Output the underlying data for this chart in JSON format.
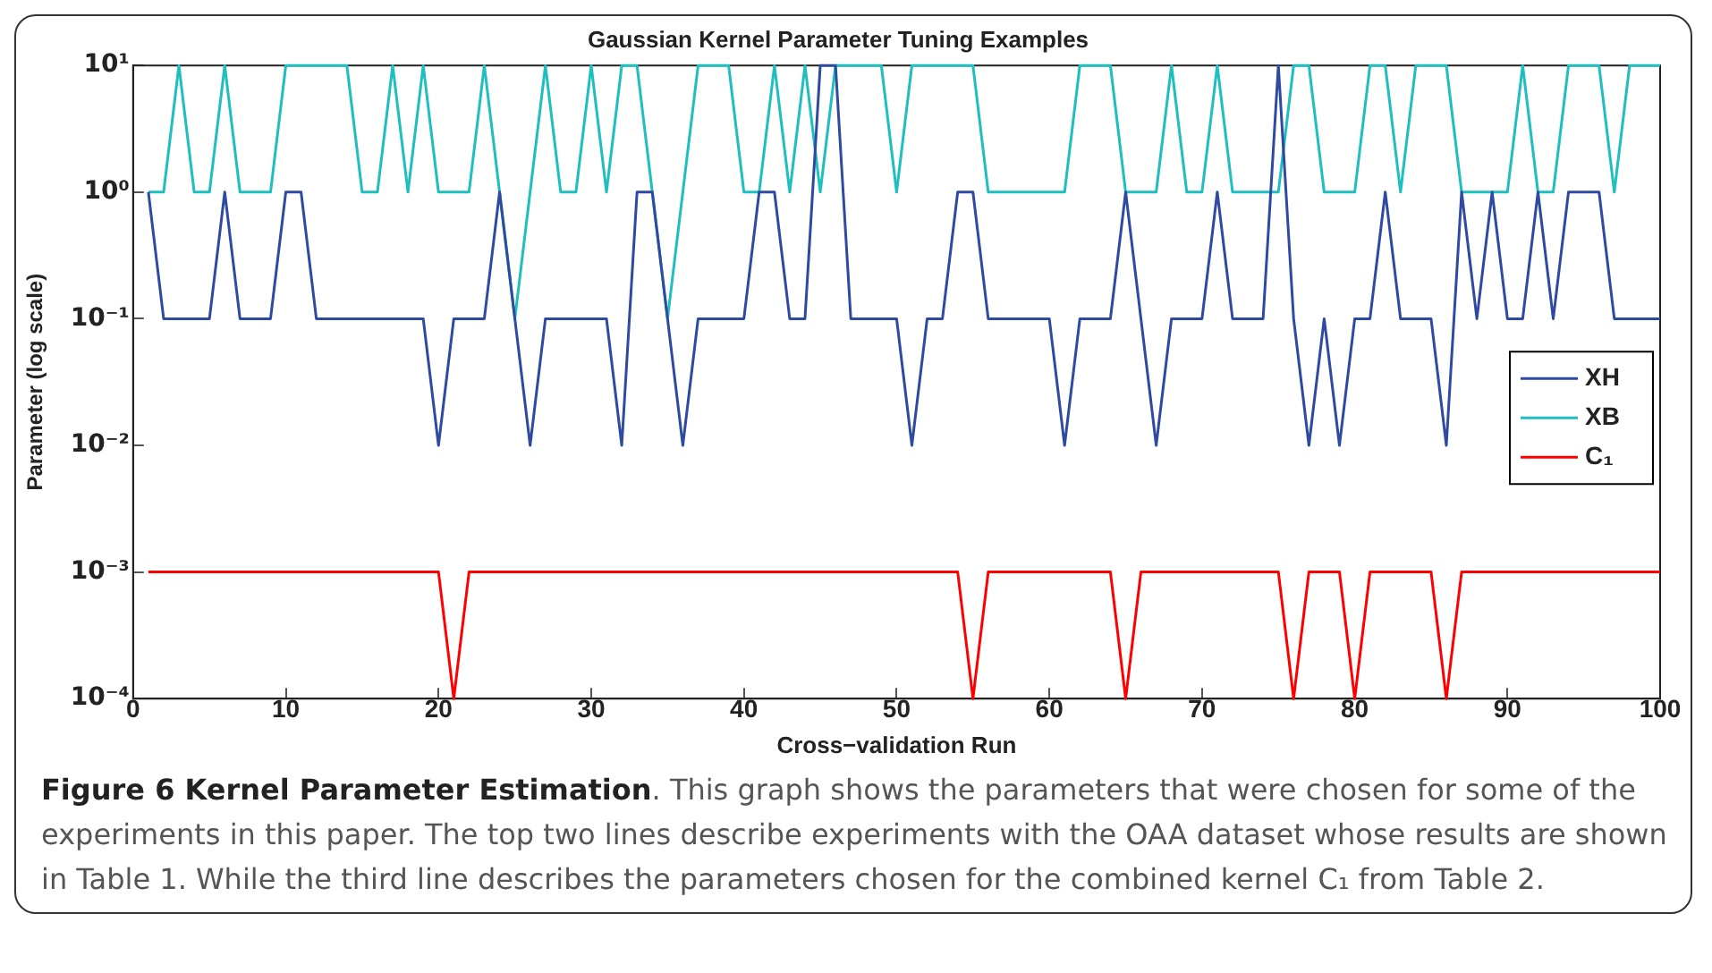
{
  "chart_data": {
    "type": "line",
    "title": "Gaussian Kernel Parameter Tuning Examples",
    "xlabel": "Cross−validation Run",
    "ylabel": "Parameter (log scale)",
    "x": [
      1,
      2,
      3,
      4,
      5,
      6,
      7,
      8,
      9,
      10,
      11,
      12,
      13,
      14,
      15,
      16,
      17,
      18,
      19,
      20,
      21,
      22,
      23,
      24,
      25,
      26,
      27,
      28,
      29,
      30,
      31,
      32,
      33,
      34,
      35,
      36,
      37,
      38,
      39,
      40,
      41,
      42,
      43,
      44,
      45,
      46,
      47,
      48,
      49,
      50,
      51,
      52,
      53,
      54,
      55,
      56,
      57,
      58,
      59,
      60,
      61,
      62,
      63,
      64,
      65,
      66,
      67,
      68,
      69,
      70,
      71,
      72,
      73,
      74,
      75,
      76,
      77,
      78,
      79,
      80,
      81,
      82,
      83,
      84,
      85,
      86,
      87,
      88,
      89,
      90,
      91,
      92,
      93,
      94,
      95,
      96,
      97,
      98,
      99,
      100
    ],
    "series": [
      {
        "name": "XH",
        "color": "#2e4aa3",
        "values": [
          1,
          0.1,
          0.1,
          0.1,
          0.1,
          1,
          0.1,
          0.1,
          0.1,
          1,
          1,
          0.1,
          0.1,
          0.1,
          0.1,
          0.1,
          0.1,
          0.1,
          0.1,
          0.01,
          0.1,
          0.1,
          0.1,
          1,
          0.1,
          0.01,
          0.1,
          0.1,
          0.1,
          0.1,
          0.1,
          0.01,
          1,
          1,
          0.1,
          0.01,
          0.1,
          0.1,
          0.1,
          0.1,
          1,
          1,
          0.1,
          0.1,
          10,
          10,
          0.1,
          0.1,
          0.1,
          0.1,
          0.01,
          0.1,
          0.1,
          1,
          1,
          0.1,
          0.1,
          0.1,
          0.1,
          0.1,
          0.01,
          0.1,
          0.1,
          0.1,
          1,
          0.1,
          0.01,
          0.1,
          0.1,
          0.1,
          1,
          0.1,
          0.1,
          0.1,
          10,
          0.1,
          0.01,
          0.1,
          0.01,
          0.1,
          0.1,
          1,
          0.1,
          0.1,
          0.1,
          0.01,
          1,
          0.1,
          1,
          0.1,
          0.1,
          1,
          0.1,
          1,
          1,
          1,
          0.1,
          0.1,
          0.1,
          0.1
        ]
      },
      {
        "name": "XB",
        "color": "#1fbfbf",
        "values": [
          1,
          1,
          10,
          1,
          1,
          10,
          1,
          1,
          1,
          10,
          10,
          10,
          10,
          10,
          1,
          1,
          10,
          1,
          10,
          1,
          1,
          1,
          10,
          1,
          0.1,
          1,
          10,
          1,
          1,
          10,
          1,
          10,
          10,
          1,
          0.1,
          1,
          10,
          10,
          10,
          1,
          1,
          10,
          1,
          10,
          1,
          10,
          10,
          10,
          10,
          1,
          10,
          10,
          10,
          10,
          10,
          1,
          1,
          1,
          1,
          1,
          1,
          10,
          10,
          10,
          1,
          1,
          1,
          10,
          1,
          1,
          10,
          1,
          1,
          1,
          1,
          10,
          10,
          1,
          1,
          1,
          10,
          10,
          1,
          10,
          10,
          10,
          1,
          1,
          1,
          1,
          10,
          1,
          1,
          10,
          10,
          10,
          1,
          10,
          10,
          10
        ]
      },
      {
        "name": "C₁",
        "color": "#ff0000",
        "values": [
          0.001,
          0.001,
          0.001,
          0.001,
          0.001,
          0.001,
          0.001,
          0.001,
          0.001,
          0.001,
          0.001,
          0.001,
          0.001,
          0.001,
          0.001,
          0.001,
          0.001,
          0.001,
          0.001,
          0.001,
          0.0001,
          0.001,
          0.001,
          0.001,
          0.001,
          0.001,
          0.001,
          0.001,
          0.001,
          0.001,
          0.001,
          0.001,
          0.001,
          0.001,
          0.001,
          0.001,
          0.001,
          0.001,
          0.001,
          0.001,
          0.001,
          0.001,
          0.001,
          0.001,
          0.001,
          0.001,
          0.001,
          0.001,
          0.001,
          0.001,
          0.001,
          0.001,
          0.001,
          0.001,
          0.0001,
          0.001,
          0.001,
          0.001,
          0.001,
          0.001,
          0.001,
          0.001,
          0.001,
          0.001,
          0.0001,
          0.001,
          0.001,
          0.001,
          0.001,
          0.001,
          0.001,
          0.001,
          0.001,
          0.001,
          0.001,
          0.0001,
          0.001,
          0.001,
          0.001,
          0.0001,
          0.001,
          0.001,
          0.001,
          0.001,
          0.001,
          0.0001,
          0.001,
          0.001,
          0.001,
          0.001,
          0.001,
          0.001,
          0.001,
          0.001,
          0.001,
          0.001,
          0.001,
          0.001,
          0.001,
          0.001
        ]
      }
    ],
    "log": "y",
    "xlim": [
      0,
      100
    ],
    "xticks": [
      0,
      10,
      20,
      30,
      40,
      50,
      60,
      70,
      80,
      90,
      100
    ],
    "ylim": [
      0.0001,
      10
    ],
    "yticks": [
      {
        "value": 0.0001,
        "label": "10⁻⁴"
      },
      {
        "value": 0.001,
        "label": "10⁻³"
      },
      {
        "value": 0.01,
        "label": "10⁻²"
      },
      {
        "value": 0.1,
        "label": "10⁻¹"
      },
      {
        "value": 1,
        "label": "10⁰"
      },
      {
        "value": 10,
        "label": "10¹"
      }
    ],
    "grid": false,
    "legend": "right",
    "marker": "none",
    "line_style": "solid",
    "annotations": [
      "Figure 6 Kernel Parameter Estimation",
      ". This graph shows the parameters that were chosen for some of the experiments in this paper. The top two lines describe experiments with the OAA dataset whose results are shown in Table 1. While the third line describes the parameters chosen for the combined kernel C₁ from Table 2."
    ]
  }
}
